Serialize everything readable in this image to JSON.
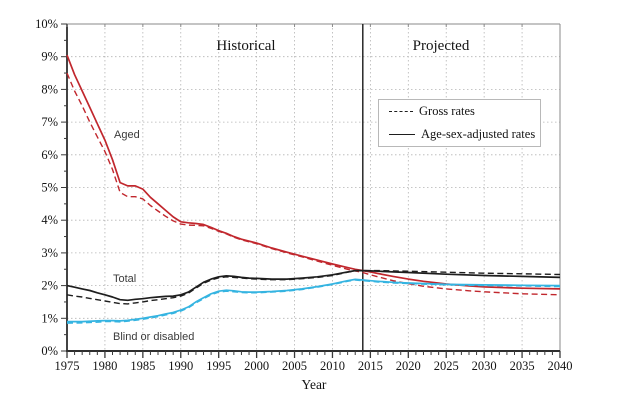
{
  "chart_data": {
    "type": "line",
    "xlabel": "Year",
    "x_range": [
      1975,
      2040
    ],
    "y_range": [
      0,
      10
    ],
    "x_ticks": [
      1975,
      1980,
      1985,
      1990,
      1995,
      2000,
      2005,
      2010,
      2015,
      2020,
      2025,
      2030,
      2035,
      2040
    ],
    "y_ticks": [
      "0%",
      "1%",
      "2%",
      "3%",
      "4%",
      "5%",
      "6%",
      "7%",
      "8%",
      "9%",
      "10%"
    ],
    "grid": true,
    "divider_year": 2014,
    "regions": {
      "historical": "Historical",
      "projected": "Projected"
    },
    "annotations": {
      "aged": "Aged",
      "total": "Total",
      "blind": "Blind or disabled"
    },
    "legend": [
      {
        "label": "Gross rates",
        "style": "dashed"
      },
      {
        "label": "Age-sex-adjusted rates",
        "style": "solid"
      }
    ],
    "colors": {
      "aged": "#c1272d",
      "total": "#1e1e1e",
      "blind": "#35b4e1"
    },
    "series": [
      {
        "name": "Aged gross rate",
        "group": "aged",
        "color": "#c1272d",
        "line_style": "dashed",
        "points": [
          [
            1975,
            8.5
          ],
          [
            1976,
            7.95
          ],
          [
            1977,
            7.5
          ],
          [
            1978,
            7.0
          ],
          [
            1979,
            6.55
          ],
          [
            1980,
            6.1
          ],
          [
            1981,
            5.55
          ],
          [
            1982,
            4.85
          ],
          [
            1983,
            4.72
          ],
          [
            1984,
            4.72
          ],
          [
            1985,
            4.65
          ],
          [
            1986,
            4.45
          ],
          [
            1987,
            4.28
          ],
          [
            1988,
            4.12
          ],
          [
            1989,
            3.98
          ],
          [
            1990,
            3.88
          ],
          [
            1991,
            3.85
          ],
          [
            1992,
            3.84
          ],
          [
            1993,
            3.83
          ],
          [
            1994,
            3.75
          ],
          [
            1995,
            3.66
          ],
          [
            1996,
            3.58
          ],
          [
            1997,
            3.48
          ],
          [
            1998,
            3.4
          ],
          [
            2000,
            3.28
          ],
          [
            2002,
            3.13
          ],
          [
            2004,
            3.0
          ],
          [
            2006,
            2.88
          ],
          [
            2008,
            2.75
          ],
          [
            2010,
            2.62
          ],
          [
            2012,
            2.5
          ],
          [
            2013,
            2.45
          ],
          [
            2014,
            2.4
          ],
          [
            2015,
            2.33
          ],
          [
            2016,
            2.27
          ],
          [
            2018,
            2.15
          ],
          [
            2020,
            2.06
          ],
          [
            2022,
            1.98
          ],
          [
            2025,
            1.9
          ],
          [
            2028,
            1.84
          ],
          [
            2030,
            1.81
          ],
          [
            2035,
            1.75
          ],
          [
            2040,
            1.72
          ]
        ]
      },
      {
        "name": "Aged age-sex-adjusted rate",
        "group": "aged",
        "color": "#c1272d",
        "line_style": "solid",
        "points": [
          [
            1975,
            9.05
          ],
          [
            1976,
            8.45
          ],
          [
            1977,
            7.95
          ],
          [
            1978,
            7.45
          ],
          [
            1979,
            6.95
          ],
          [
            1980,
            6.45
          ],
          [
            1981,
            5.85
          ],
          [
            1982,
            5.15
          ],
          [
            1983,
            5.05
          ],
          [
            1984,
            5.05
          ],
          [
            1985,
            4.95
          ],
          [
            1986,
            4.7
          ],
          [
            1987,
            4.5
          ],
          [
            1988,
            4.3
          ],
          [
            1989,
            4.1
          ],
          [
            1990,
            3.95
          ],
          [
            1991,
            3.92
          ],
          [
            1992,
            3.9
          ],
          [
            1993,
            3.87
          ],
          [
            1994,
            3.78
          ],
          [
            1995,
            3.68
          ],
          [
            1996,
            3.6
          ],
          [
            1997,
            3.5
          ],
          [
            1998,
            3.42
          ],
          [
            2000,
            3.3
          ],
          [
            2002,
            3.15
          ],
          [
            2004,
            3.02
          ],
          [
            2006,
            2.9
          ],
          [
            2008,
            2.78
          ],
          [
            2010,
            2.66
          ],
          [
            2012,
            2.55
          ],
          [
            2013,
            2.5
          ],
          [
            2014,
            2.46
          ],
          [
            2015,
            2.42
          ],
          [
            2016,
            2.37
          ],
          [
            2018,
            2.28
          ],
          [
            2020,
            2.2
          ],
          [
            2022,
            2.13
          ],
          [
            2025,
            2.05
          ],
          [
            2028,
            1.99
          ],
          [
            2030,
            1.96
          ],
          [
            2035,
            1.92
          ],
          [
            2040,
            1.9
          ]
        ]
      },
      {
        "name": "Total gross rate",
        "group": "total",
        "color": "#1e1e1e",
        "line_style": "dashed",
        "points": [
          [
            1975,
            1.72
          ],
          [
            1976,
            1.68
          ],
          [
            1977,
            1.65
          ],
          [
            1978,
            1.61
          ],
          [
            1979,
            1.57
          ],
          [
            1980,
            1.53
          ],
          [
            1981,
            1.49
          ],
          [
            1982,
            1.45
          ],
          [
            1983,
            1.44
          ],
          [
            1984,
            1.47
          ],
          [
            1985,
            1.5
          ],
          [
            1986,
            1.54
          ],
          [
            1987,
            1.57
          ],
          [
            1988,
            1.6
          ],
          [
            1989,
            1.63
          ],
          [
            1990,
            1.68
          ],
          [
            1991,
            1.77
          ],
          [
            1992,
            1.92
          ],
          [
            1993,
            2.07
          ],
          [
            1994,
            2.17
          ],
          [
            1995,
            2.24
          ],
          [
            1996,
            2.27
          ],
          [
            1997,
            2.25
          ],
          [
            1998,
            2.23
          ],
          [
            1999,
            2.21
          ],
          [
            2000,
            2.2
          ],
          [
            2002,
            2.18
          ],
          [
            2004,
            2.18
          ],
          [
            2006,
            2.21
          ],
          [
            2008,
            2.25
          ],
          [
            2010,
            2.31
          ],
          [
            2012,
            2.41
          ],
          [
            2013,
            2.45
          ],
          [
            2014,
            2.46
          ],
          [
            2015,
            2.46
          ],
          [
            2016,
            2.46
          ],
          [
            2018,
            2.45
          ],
          [
            2020,
            2.44
          ],
          [
            2025,
            2.41
          ],
          [
            2030,
            2.38
          ],
          [
            2035,
            2.36
          ],
          [
            2040,
            2.34
          ]
        ]
      },
      {
        "name": "Total age-sex-adjusted rate",
        "group": "total",
        "color": "#1e1e1e",
        "line_style": "solid",
        "points": [
          [
            1975,
            2.0
          ],
          [
            1976,
            1.95
          ],
          [
            1977,
            1.9
          ],
          [
            1978,
            1.85
          ],
          [
            1979,
            1.78
          ],
          [
            1980,
            1.72
          ],
          [
            1981,
            1.65
          ],
          [
            1982,
            1.57
          ],
          [
            1983,
            1.55
          ],
          [
            1984,
            1.58
          ],
          [
            1985,
            1.6
          ],
          [
            1986,
            1.63
          ],
          [
            1987,
            1.65
          ],
          [
            1988,
            1.67
          ],
          [
            1989,
            1.68
          ],
          [
            1990,
            1.72
          ],
          [
            1991,
            1.8
          ],
          [
            1992,
            1.95
          ],
          [
            1993,
            2.1
          ],
          [
            1994,
            2.2
          ],
          [
            1995,
            2.27
          ],
          [
            1996,
            2.3
          ],
          [
            1997,
            2.28
          ],
          [
            1998,
            2.25
          ],
          [
            1999,
            2.23
          ],
          [
            2000,
            2.22
          ],
          [
            2002,
            2.2
          ],
          [
            2004,
            2.2
          ],
          [
            2006,
            2.23
          ],
          [
            2008,
            2.27
          ],
          [
            2010,
            2.33
          ],
          [
            2012,
            2.42
          ],
          [
            2013,
            2.46
          ],
          [
            2014,
            2.46
          ],
          [
            2015,
            2.45
          ],
          [
            2016,
            2.44
          ],
          [
            2018,
            2.42
          ],
          [
            2020,
            2.4
          ],
          [
            2025,
            2.35
          ],
          [
            2030,
            2.31
          ],
          [
            2035,
            2.28
          ],
          [
            2040,
            2.25
          ]
        ]
      },
      {
        "name": "Blind or disabled gross rate",
        "group": "blind",
        "color": "#35b4e1",
        "line_style": "dashed",
        "points": [
          [
            1975,
            0.85
          ],
          [
            1977,
            0.86
          ],
          [
            1979,
            0.88
          ],
          [
            1980,
            0.9
          ],
          [
            1981,
            0.9
          ],
          [
            1982,
            0.89
          ],
          [
            1983,
            0.91
          ],
          [
            1984,
            0.94
          ],
          [
            1985,
            0.97
          ],
          [
            1986,
            1.01
          ],
          [
            1987,
            1.05
          ],
          [
            1988,
            1.1
          ],
          [
            1989,
            1.15
          ],
          [
            1990,
            1.22
          ],
          [
            1991,
            1.32
          ],
          [
            1992,
            1.47
          ],
          [
            1993,
            1.6
          ],
          [
            1994,
            1.72
          ],
          [
            1995,
            1.8
          ],
          [
            1996,
            1.83
          ],
          [
            1997,
            1.81
          ],
          [
            1998,
            1.79
          ],
          [
            1999,
            1.78
          ],
          [
            2000,
            1.78
          ],
          [
            2002,
            1.8
          ],
          [
            2004,
            1.83
          ],
          [
            2006,
            1.88
          ],
          [
            2008,
            1.95
          ],
          [
            2010,
            2.03
          ],
          [
            2012,
            2.13
          ],
          [
            2013,
            2.17
          ],
          [
            2014,
            2.15
          ],
          [
            2015,
            2.13
          ],
          [
            2016,
            2.11
          ],
          [
            2018,
            2.08
          ],
          [
            2020,
            2.06
          ],
          [
            2025,
            2.02
          ],
          [
            2030,
            2.0
          ],
          [
            2035,
            1.99
          ],
          [
            2040,
            1.97
          ]
        ]
      },
      {
        "name": "Blind or disabled age-sex-adjusted rate",
        "group": "blind",
        "color": "#35b4e1",
        "line_style": "solid",
        "points": [
          [
            1975,
            0.9
          ],
          [
            1977,
            0.9
          ],
          [
            1979,
            0.92
          ],
          [
            1980,
            0.93
          ],
          [
            1981,
            0.93
          ],
          [
            1982,
            0.92
          ],
          [
            1983,
            0.94
          ],
          [
            1984,
            0.97
          ],
          [
            1985,
            1.0
          ],
          [
            1986,
            1.04
          ],
          [
            1987,
            1.08
          ],
          [
            1988,
            1.13
          ],
          [
            1989,
            1.18
          ],
          [
            1990,
            1.25
          ],
          [
            1991,
            1.35
          ],
          [
            1992,
            1.5
          ],
          [
            1993,
            1.63
          ],
          [
            1994,
            1.75
          ],
          [
            1995,
            1.83
          ],
          [
            1996,
            1.86
          ],
          [
            1997,
            1.84
          ],
          [
            1998,
            1.81
          ],
          [
            1999,
            1.8
          ],
          [
            2000,
            1.8
          ],
          [
            2002,
            1.82
          ],
          [
            2004,
            1.85
          ],
          [
            2006,
            1.9
          ],
          [
            2008,
            1.97
          ],
          [
            2010,
            2.05
          ],
          [
            2012,
            2.15
          ],
          [
            2013,
            2.19
          ],
          [
            2014,
            2.17
          ],
          [
            2015,
            2.15
          ],
          [
            2016,
            2.13
          ],
          [
            2018,
            2.1
          ],
          [
            2020,
            2.08
          ],
          [
            2025,
            2.04
          ],
          [
            2030,
            2.02
          ],
          [
            2035,
            2.01
          ],
          [
            2040,
            2.0
          ]
        ]
      }
    ]
  }
}
